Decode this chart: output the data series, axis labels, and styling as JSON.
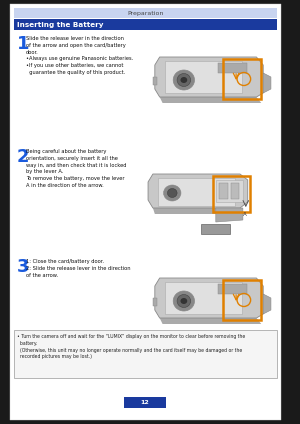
{
  "bg_color": "#1a1a1a",
  "page_bg": "#ffffff",
  "header_text": "Preparation",
  "header_bg": "#c8d4f0",
  "header_text_color": "#444444",
  "subheader_text": "Inserting the Battery",
  "subheader_bg": "#1a3a9e",
  "subheader_text_color": "#ffffff",
  "step_numbers": [
    "1",
    "2",
    "3"
  ],
  "step_number_color": "#1a5adc",
  "step1_text": "Slide the release lever in the direction\nof the arrow and open the card/battery\ndoor.\n•Always use genuine Panasonic batteries.\n•If you use other batteries, we cannot\n  guarantee the quality of this product.",
  "step2_text": "Being careful about the battery\norientation, securely insert it all the\nway in, and then check that it is locked\nby the lever A.\nTo remove the battery, move the lever\nA in the direction of the arrow.",
  "step3_text": "1: Close the card/battery door.\n2: Slide the release lever in the direction\nof the arrow.",
  "note_text": "• Turn the camera off and wait for the “LUMIX” display on the monitor to clear before removing the\n  battery.\n  (Otherwise, this unit may no longer operate normally and the card itself may be damaged or the\n  recorded pictures may be lost.)",
  "note_bg": "#f5f5f5",
  "note_border": "#aaaaaa",
  "highlight_border": "#e08000",
  "page_num_color": "#1a3a9e",
  "page_num": "12",
  "cam_body": "#c8c8c8",
  "cam_dark": "#aaaaaa",
  "cam_darker": "#888888",
  "cam_light": "#e0e0e0",
  "cam_orange": "#e08000"
}
